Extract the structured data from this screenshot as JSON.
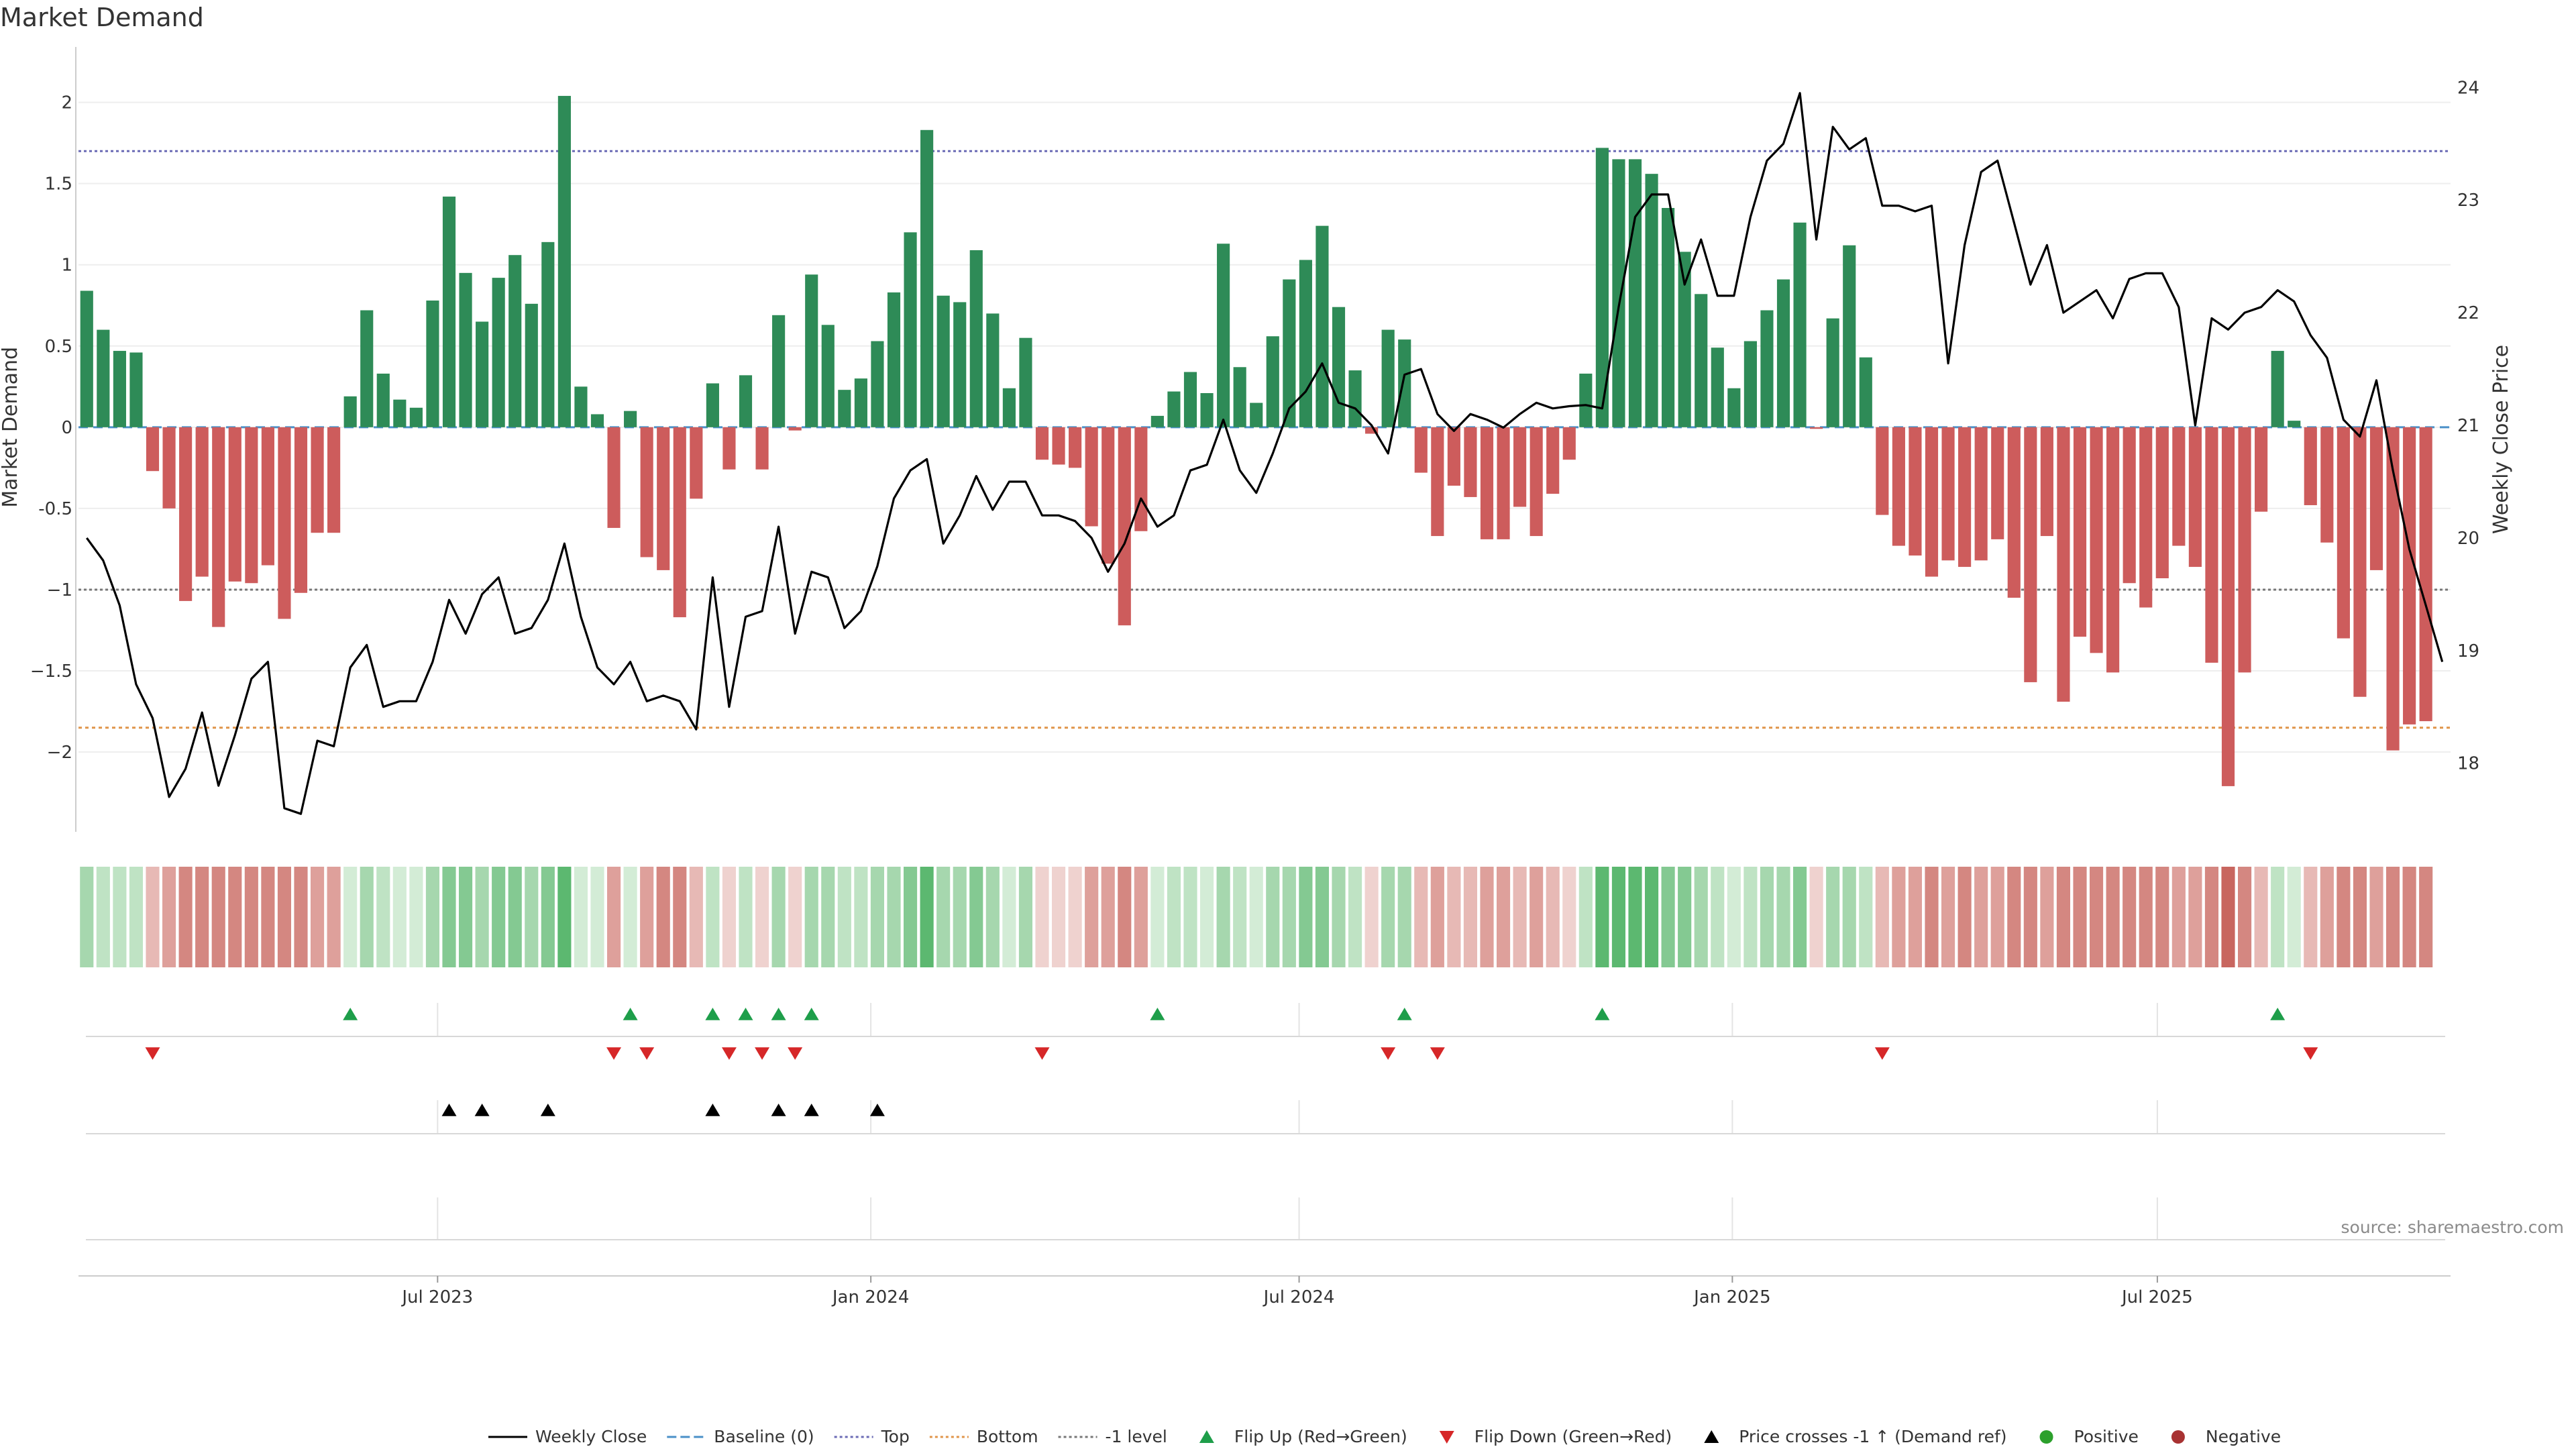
{
  "chart_data": {
    "type": "bar",
    "title": "Market Demand",
    "ylabel_left": "Market Demand",
    "ylabel_right": "Weekly Close Price",
    "ylim_left": [
      -2.45,
      2.3
    ],
    "ylim_right": [
      17.45,
      24.3
    ],
    "yticks_left": [
      {
        "v": 2,
        "label": "2"
      },
      {
        "v": 1.5,
        "label": "1.5"
      },
      {
        "v": 1,
        "label": "1"
      },
      {
        "v": 0.5,
        "label": "0.5"
      },
      {
        "v": 0,
        "label": "0"
      },
      {
        "v": -0.5,
        "label": "-0.5"
      },
      {
        "v": -1,
        "label": "−1"
      },
      {
        "v": -1.5,
        "label": "−1.5"
      },
      {
        "v": -2,
        "label": "−2"
      }
    ],
    "yticks_right": [
      {
        "v": 24,
        "label": "24"
      },
      {
        "v": 23,
        "label": "23"
      },
      {
        "v": 22,
        "label": "22"
      },
      {
        "v": 21,
        "label": "21"
      },
      {
        "v": 20,
        "label": "20"
      },
      {
        "v": 19,
        "label": "19"
      },
      {
        "v": 18,
        "label": "18"
      }
    ],
    "x_range_weeks": [
      0,
      143
    ],
    "xticks": [
      {
        "label": "Jul 2023",
        "week": 21.3
      },
      {
        "label": "Jan 2024",
        "week": 47.6
      },
      {
        "label": "Jul 2024",
        "week": 73.6
      },
      {
        "label": "Jan 2025",
        "week": 99.9
      },
      {
        "label": "Jul 2025",
        "week": 125.7
      }
    ],
    "reference_lines": {
      "top": 1.7,
      "bottom": -1.85,
      "minus_one": -1,
      "baseline": 0
    },
    "demand": [
      0.84,
      0.6,
      0.47,
      0.46,
      -0.27,
      -0.5,
      -1.07,
      -0.92,
      -1.23,
      -0.95,
      -0.96,
      -0.85,
      -1.18,
      -1.02,
      -0.65,
      -0.65,
      0.19,
      0.72,
      0.33,
      0.17,
      0.12,
      0.78,
      1.42,
      0.95,
      0.65,
      0.92,
      1.06,
      0.76,
      1.14,
      2.04,
      0.25,
      0.08,
      -0.62,
      0.1,
      -0.8,
      -0.88,
      -1.17,
      -0.44,
      0.27,
      -0.26,
      0.32,
      -0.26,
      0.69,
      -0.02,
      0.94,
      0.63,
      0.23,
      0.3,
      0.53,
      0.83,
      1.2,
      1.83,
      0.81,
      0.77,
      1.09,
      0.7,
      0.24,
      0.55,
      -0.2,
      -0.23,
      -0.25,
      -0.61,
      -0.84,
      -1.22,
      -0.64,
      0.07,
      0.22,
      0.34,
      0.21,
      1.13,
      0.37,
      0.15,
      0.56,
      0.91,
      1.03,
      1.24,
      0.74,
      0.35,
      -0.04,
      0.6,
      0.54,
      -0.28,
      -0.67,
      -0.36,
      -0.43,
      -0.69,
      -0.69,
      -0.49,
      -0.67,
      -0.41,
      -0.2,
      0.33,
      1.72,
      1.65,
      1.65,
      1.56,
      1.35,
      1.08,
      0.82,
      0.49,
      0.24,
      0.53,
      0.72,
      0.91,
      1.26,
      -0.01,
      0.67,
      1.12,
      0.43,
      -0.54,
      -0.73,
      -0.79,
      -0.92,
      -0.82,
      -0.86,
      -0.82,
      -0.69,
      -1.05,
      -1.57,
      -0.67,
      -1.69,
      -1.29,
      -1.39,
      -1.51,
      -0.96,
      -1.11,
      -0.93,
      -0.73,
      -0.86,
      -1.45,
      -2.21,
      -1.51,
      -0.52,
      0.47,
      0.04,
      -0.48,
      -0.71,
      -1.3,
      -1.66,
      -0.88,
      -1.99,
      -1.83,
      -1.81
    ],
    "close": [
      20.0,
      19.8,
      19.4,
      18.7,
      18.4,
      17.7,
      17.95,
      18.45,
      17.8,
      18.25,
      18.75,
      18.9,
      17.6,
      17.55,
      18.2,
      18.15,
      18.85,
      19.05,
      18.5,
      18.55,
      18.55,
      18.9,
      19.45,
      19.15,
      19.5,
      19.65,
      19.15,
      19.2,
      19.45,
      19.95,
      19.3,
      18.85,
      18.7,
      18.9,
      18.55,
      18.6,
      18.55,
      18.3,
      19.65,
      18.5,
      19.3,
      19.35,
      20.1,
      19.15,
      19.7,
      19.65,
      19.2,
      19.35,
      19.75,
      20.35,
      20.6,
      20.7,
      19.95,
      20.2,
      20.55,
      20.25,
      20.5,
      20.5,
      20.2,
      20.2,
      20.15,
      20.0,
      19.7,
      19.95,
      20.35,
      20.1,
      20.2,
      20.6,
      20.65,
      21.05,
      20.6,
      20.4,
      20.75,
      21.15,
      21.3,
      21.55,
      21.2,
      21.15,
      21.0,
      20.75,
      21.45,
      21.5,
      21.1,
      20.95,
      21.1,
      21.05,
      20.98,
      21.1,
      21.2,
      21.15,
      21.17,
      21.18,
      21.15,
      22.05,
      22.85,
      23.05,
      23.05,
      22.25,
      22.65,
      22.15,
      22.15,
      22.85,
      23.35,
      23.5,
      23.95,
      22.65,
      23.65,
      23.45,
      23.55,
      22.95,
      22.95,
      22.9,
      22.95,
      21.55,
      22.6,
      23.25,
      23.35,
      22.8,
      22.25,
      22.6,
      22.0,
      22.1,
      22.2,
      21.95,
      22.3,
      22.35,
      22.35,
      22.05,
      21.0,
      21.95,
      21.85,
      22.0,
      22.05,
      22.2,
      22.1,
      21.8,
      21.6,
      21.05,
      20.9,
      21.4,
      20.6,
      19.9,
      19.4,
      18.9
    ],
    "flip_up_weeks": [
      16,
      33,
      38,
      40,
      42,
      44,
      65,
      80,
      92,
      133
    ],
    "flip_down_weeks": [
      4,
      32,
      34,
      39,
      41,
      43,
      58,
      79,
      82,
      109,
      135
    ],
    "price_cross_weeks": [
      22,
      24,
      28,
      38,
      42,
      44,
      48
    ],
    "heat_intensity": [
      3,
      2,
      2,
      2,
      2,
      3,
      4,
      4,
      4,
      4,
      4,
      4,
      4,
      4,
      3,
      3,
      1,
      3,
      2,
      1,
      1,
      3,
      4,
      4,
      3,
      4,
      4,
      3,
      4,
      5,
      1,
      1,
      3,
      1,
      3,
      4,
      4,
      2,
      2,
      1,
      2,
      1,
      3,
      1,
      3,
      3,
      2,
      2,
      3,
      3,
      4,
      5,
      3,
      3,
      4,
      3,
      1,
      3,
      1,
      1,
      1,
      3,
      3,
      4,
      3,
      1,
      2,
      2,
      1,
      3,
      2,
      1,
      3,
      3,
      4,
      4,
      3,
      2,
      1,
      3,
      3,
      2,
      3,
      2,
      2,
      3,
      3,
      2,
      3,
      2,
      1,
      2,
      5,
      5,
      5,
      5,
      4,
      4,
      3,
      2,
      1,
      2,
      3,
      3,
      4,
      1,
      3,
      3,
      2,
      2,
      3,
      3,
      4,
      3,
      4,
      3,
      3,
      4,
      4,
      3,
      4,
      4,
      4,
      4,
      4,
      4,
      4,
      3,
      3,
      4,
      5,
      4,
      2,
      2,
      1,
      2,
      3,
      4,
      4,
      3,
      4,
      4,
      4
    ],
    "colors": {
      "positive_bar": "#2e8b57",
      "negative_bar": "#cd5c5c",
      "close_line": "#000000",
      "top_line": "#6b6bb5",
      "bottom_line": "#e0954a",
      "minus_one_line": "#777777",
      "baseline": "#4a90c8",
      "flip_up": "#1e9e4a",
      "flip_down": "#d62728",
      "price_cross": "#000000",
      "positive_dot": "#2ca02c",
      "negative_dot": "#a83232",
      "heat_green": [
        "#d3ecd6",
        "#bfe3c4",
        "#a6d7ae",
        "#84c992",
        "#5cb870"
      ],
      "heat_red": [
        "#efd2cf",
        "#e7b9b5",
        "#dea09b",
        "#d48781",
        "#c8665f"
      ]
    },
    "legend": [
      {
        "label": "Weekly Close",
        "kind": "solid-line",
        "color": "#000000"
      },
      {
        "label": "Baseline (0)",
        "kind": "dash-line",
        "color": "#4a90c8"
      },
      {
        "label": "Top",
        "kind": "dot-line",
        "color": "#6b6bb5"
      },
      {
        "label": "Bottom",
        "kind": "dot-line",
        "color": "#e0954a"
      },
      {
        "label": "-1 level",
        "kind": "dot-line",
        "color": "#777777"
      },
      {
        "label": "Flip Up (Red→Green)",
        "kind": "tri-up",
        "color": "#1e9e4a"
      },
      {
        "label": "Flip Down (Green→Red)",
        "kind": "tri-down",
        "color": "#d62728"
      },
      {
        "label": "Price crosses -1 ↑ (Demand ref)",
        "kind": "tri-up",
        "color": "#000000"
      },
      {
        "label": "Positive",
        "kind": "dot",
        "color": "#2ca02c"
      },
      {
        "label": "Negative",
        "kind": "dot",
        "color": "#a83232"
      }
    ],
    "source_note": "source: sharemaestro.com"
  }
}
